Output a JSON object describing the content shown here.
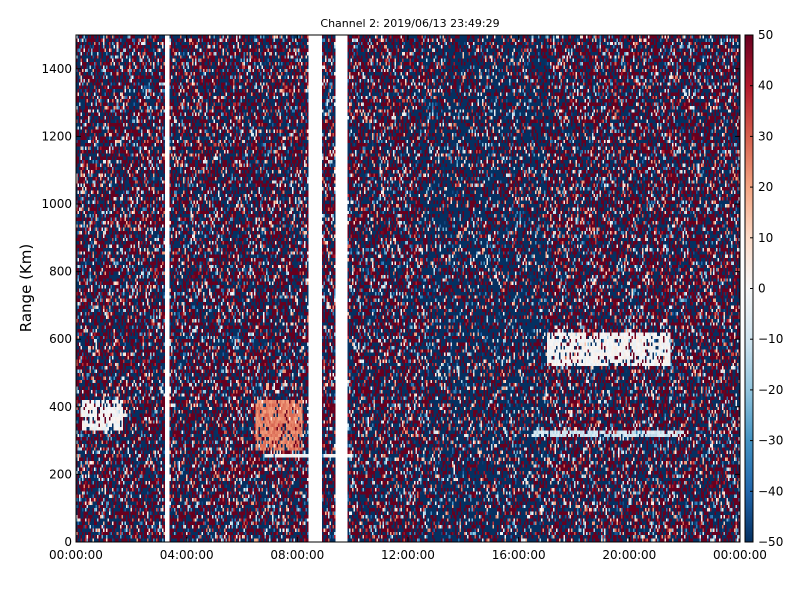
{
  "chart_data": {
    "type": "heatmap",
    "title": "Channel 2: 2019/06/13 23:49:29",
    "xlabel": "",
    "ylabel": "Range (Km)",
    "x_ticks": [
      "00:00:00",
      "04:00:00",
      "08:00:00",
      "12:00:00",
      "16:00:00",
      "20:00:00",
      "00:00:00"
    ],
    "x_range_hours": [
      0,
      24
    ],
    "y_ticks": [
      0,
      200,
      400,
      600,
      800,
      1000,
      1200,
      1400
    ],
    "ylim": [
      0,
      1500
    ],
    "colorbar": {
      "colormap": "RdBu_r",
      "ticks": [
        50,
        40,
        30,
        20,
        10,
        0,
        -10,
        -20,
        -30,
        -40,
        -50
      ],
      "range": [
        -50,
        50
      ],
      "colors": {
        "low": "#053061",
        "mid": "#f7f7f7",
        "high": "#67001f"
      }
    },
    "data_gaps_hours": [
      [
        3.2,
        3.4
      ],
      [
        8.4,
        8.9
      ],
      [
        9.4,
        9.8
      ]
    ],
    "features": [
      {
        "hour_start": 0.2,
        "hour_end": 1.7,
        "range_start": 330,
        "range_end": 420,
        "value": 0
      },
      {
        "hour_start": 6.5,
        "hour_end": 8.2,
        "range_start": 270,
        "range_end": 420,
        "value": 25
      },
      {
        "hour_start": 6.8,
        "hour_end": 10.0,
        "range_start": 250,
        "range_end": 260,
        "value": 0
      },
      {
        "hour_start": 16.5,
        "hour_end": 22.0,
        "range_start": 310,
        "range_end": 330,
        "value": -10
      },
      {
        "hour_start": 17.0,
        "hour_end": 21.5,
        "range_start": 520,
        "range_end": 620,
        "value": 0
      }
    ]
  }
}
